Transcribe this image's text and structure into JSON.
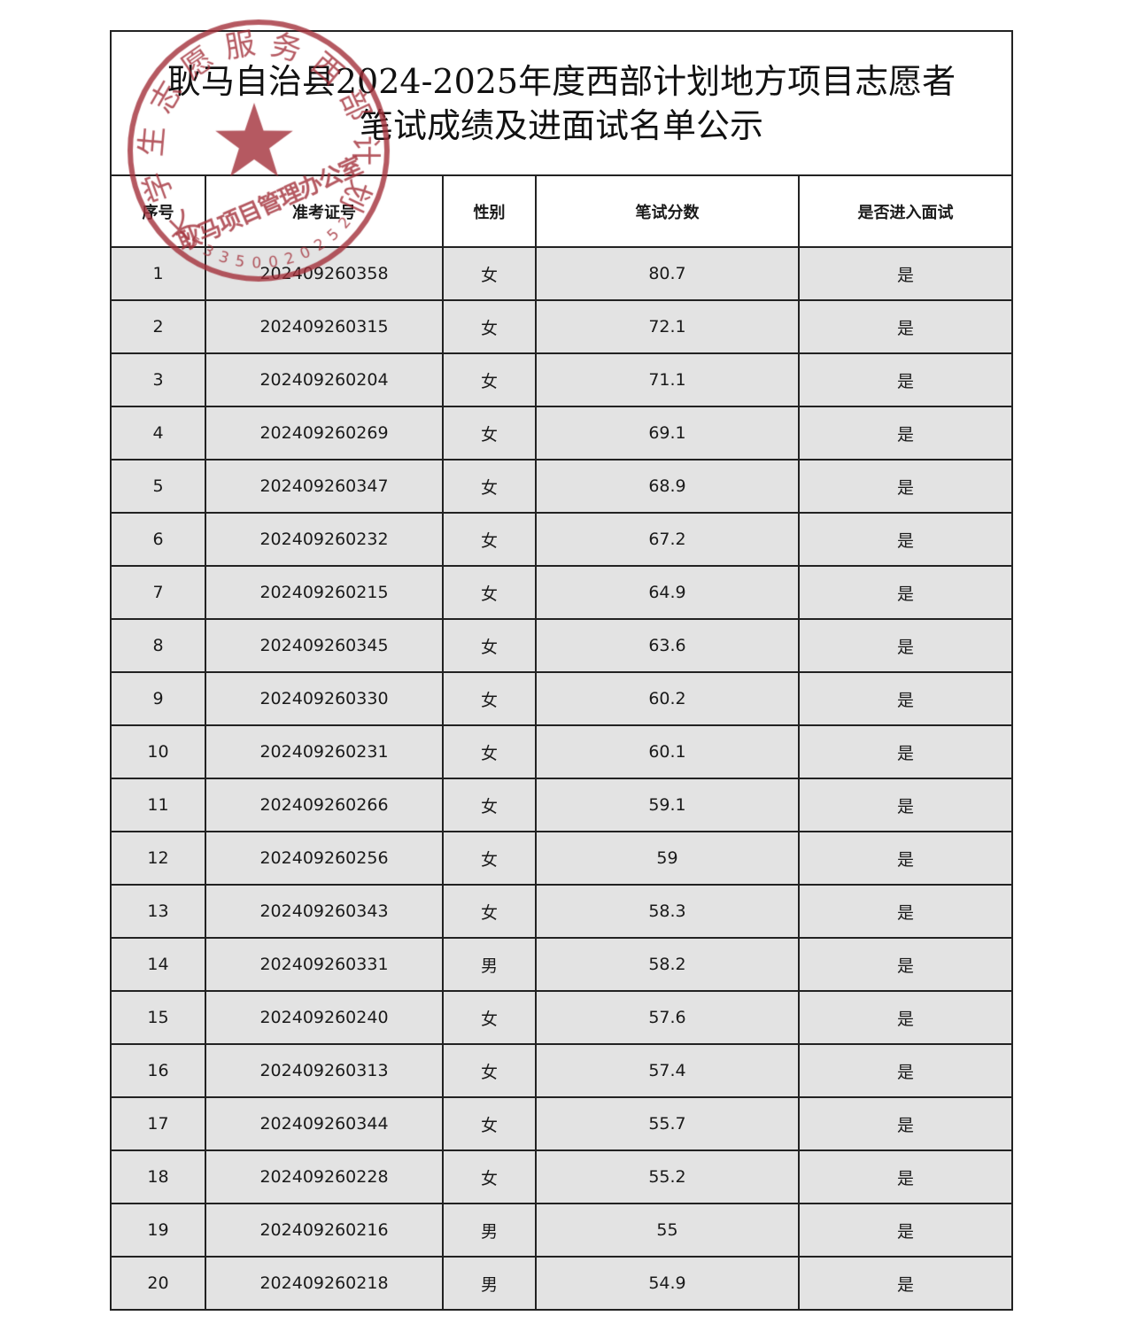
{
  "title_line1": "耿马自治县2024-2025年度西部计划地方项目志愿者",
  "title_line2": "笔试成绩及进面试名单公示",
  "headers": [
    "序号",
    "准考证号",
    "性别",
    "笔试分数",
    "是否进入面试"
  ],
  "rows": [
    [
      "1",
      "202409260358",
      "女",
      "80.7",
      "是"
    ],
    [
      "2",
      "202409260315",
      "女",
      "72.1",
      "是"
    ],
    [
      "3",
      "202409260204",
      "女",
      "71.1",
      "是"
    ],
    [
      "4",
      "202409260269",
      "女",
      "69.1",
      "是"
    ],
    [
      "5",
      "202409260347",
      "女",
      "68.9",
      "是"
    ],
    [
      "6",
      "202409260232",
      "女",
      "67.2",
      "是"
    ],
    [
      "7",
      "202409260215",
      "女",
      "64.9",
      "是"
    ],
    [
      "8",
      "202409260345",
      "女",
      "63.6",
      "是"
    ],
    [
      "9",
      "202409260330",
      "女",
      "60.2",
      "是"
    ],
    [
      "10",
      "202409260231",
      "女",
      "60.1",
      "是"
    ],
    [
      "11",
      "202409260266",
      "女",
      "59.1",
      "是"
    ],
    [
      "12",
      "202409260256",
      "女",
      "59",
      "是"
    ],
    [
      "13",
      "202409260343",
      "女",
      "58.3",
      "是"
    ],
    [
      "14",
      "202409260331",
      "男",
      "58.2",
      "是"
    ],
    [
      "15",
      "202409260240",
      "女",
      "57.6",
      "是"
    ],
    [
      "16",
      "202409260313",
      "女",
      "57.4",
      "是"
    ],
    [
      "17",
      "202409260344",
      "女",
      "55.7",
      "是"
    ],
    [
      "18",
      "202409260228",
      "女",
      "55.2",
      "是"
    ],
    [
      "19",
      "202409260216",
      "男",
      "55",
      "是"
    ],
    [
      "20",
      "202409260218",
      "男",
      "54.9",
      "是"
    ]
  ],
  "stamp": {
    "outer_text": "大学生志愿服务西部计划",
    "inner_text": "耿马项目管理办公室",
    "code": "53350020252",
    "color": "#a3303a"
  }
}
